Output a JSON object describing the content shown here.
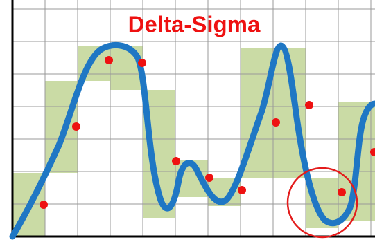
{
  "header": {
    "title": "Delta-Sigma"
  }
}
